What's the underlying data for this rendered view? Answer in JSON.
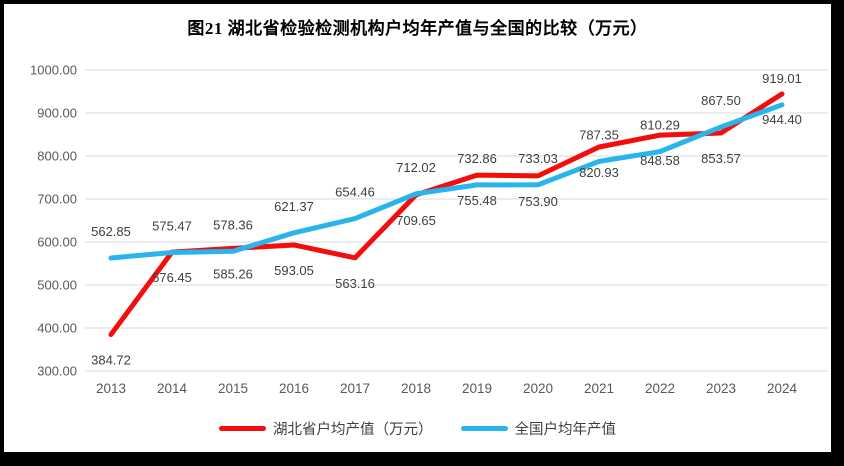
{
  "title": "图21 湖北省检验检测机构户均年产值与全国的比较（万元）",
  "chart_data": {
    "type": "line",
    "x": [
      "2013",
      "2014",
      "2015",
      "2016",
      "2017",
      "2018",
      "2019",
      "2020",
      "2021",
      "2022",
      "2023",
      "2024"
    ],
    "series": [
      {
        "name": "湖北省户均产值（万元）",
        "color": "#F40D0D",
        "label_position": "below",
        "values": [
          384.72,
          576.45,
          585.26,
          593.05,
          563.16,
          709.65,
          755.48,
          753.9,
          820.93,
          848.58,
          853.57,
          944.4
        ]
      },
      {
        "name": "全国户均年产值",
        "color": "#29B5EB",
        "label_position": "above",
        "values": [
          562.85,
          575.47,
          578.36,
          621.37,
          654.46,
          712.02,
          732.86,
          733.03,
          787.35,
          810.29,
          867.5,
          919.01
        ]
      }
    ],
    "ylim": [
      300,
      1000
    ],
    "ytick_step": 100,
    "ytick_format_decimals": 2,
    "grid": true,
    "legend_position": "bottom",
    "xlabel": "",
    "ylabel": ""
  },
  "colors": {
    "frame": "#000000",
    "background": "#FFFFFF",
    "gridline": "#D9D9D9",
    "axis_text": "#595959",
    "data_label_text": "#3F3F3F",
    "title_text": "#000000"
  }
}
